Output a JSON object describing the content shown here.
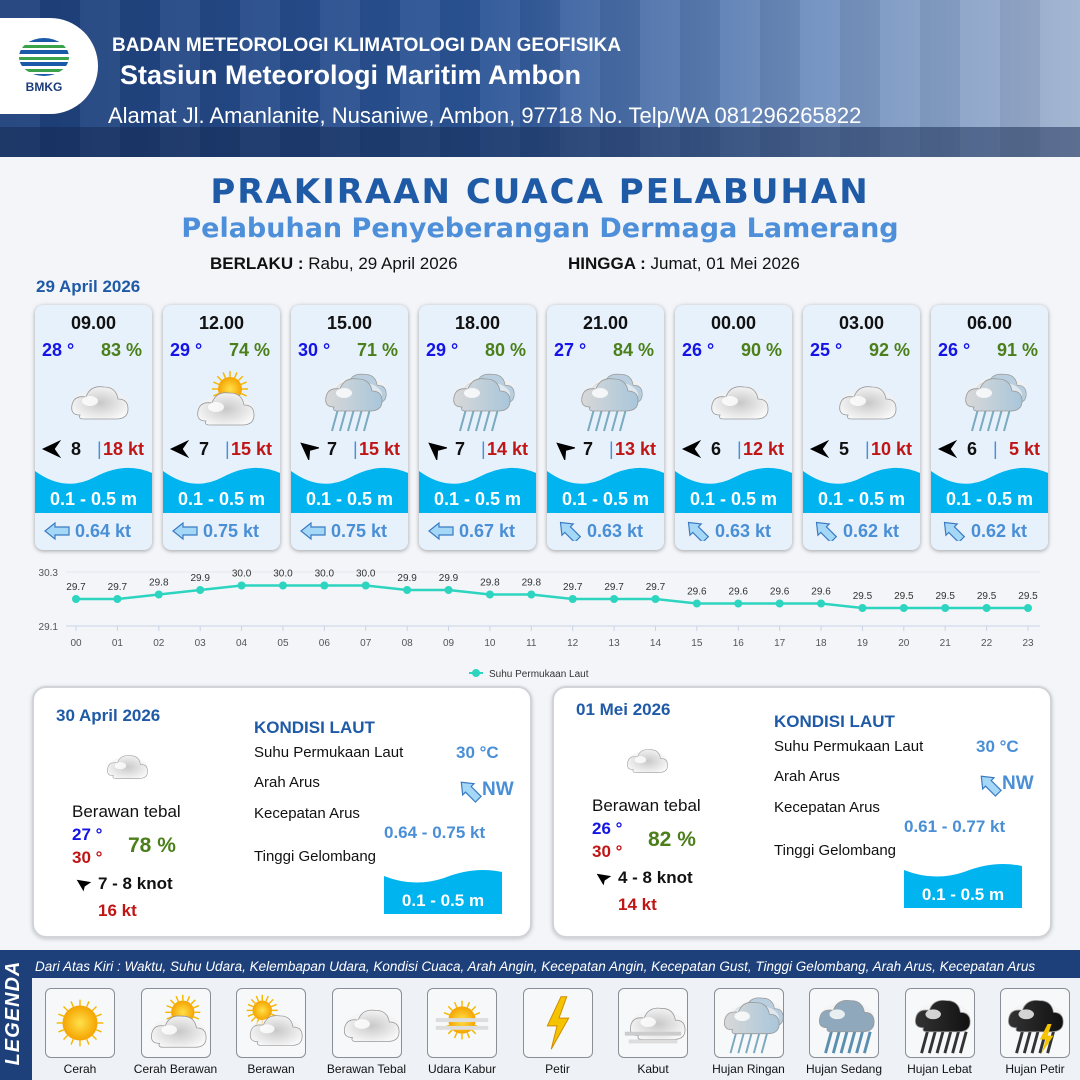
{
  "header": {
    "org": "BADAN METEOROLOGI KLIMATOLOGI DAN GEOFISIKA",
    "station": "Stasiun Meteorologi Maritim Ambon",
    "address": "Alamat Jl. Amanlanite, Nusaniwe, Ambon, 97718   No. Telp/WA  081296265822",
    "logo_text": "BMKG"
  },
  "title": "PRAKIRAAN CUACA PELABUHAN",
  "subtitle": "Pelabuhan Penyeberangan Dermaga Lamerang",
  "validity": {
    "from_label": "BERLAKU :",
    "from": "Rabu, 29 April 2026",
    "to_label": "HINGGA :",
    "to": "Jumat, 01 Mei 2026"
  },
  "day1_date": "29 April 2026",
  "forecasts": [
    {
      "time": "09.00",
      "temp": "28 °",
      "hum": "83 %",
      "weather": "berawan-tebal",
      "wind_dir": "E",
      "wind": "8",
      "gust": "18 kt",
      "wave": "0.1 - 0.5 m",
      "current_dir": "E",
      "current": "0.64 kt"
    },
    {
      "time": "12.00",
      "temp": "29 °",
      "hum": "74 %",
      "weather": "cerah-berawan",
      "wind_dir": "E",
      "wind": "7",
      "gust": "15 kt",
      "wave": "0.1 - 0.5 m",
      "current_dir": "E",
      "current": "0.75 kt"
    },
    {
      "time": "15.00",
      "temp": "30 °",
      "hum": "71 %",
      "weather": "hujan-ringan",
      "wind_dir": "SE",
      "wind": "7",
      "gust": "15 kt",
      "wave": "0.1 - 0.5 m",
      "current_dir": "E",
      "current": "0.75 kt"
    },
    {
      "time": "18.00",
      "temp": "29 °",
      "hum": "80 %",
      "weather": "hujan-ringan",
      "wind_dir": "SE",
      "wind": "7",
      "gust": "14 kt",
      "wave": "0.1 - 0.5 m",
      "current_dir": "E",
      "current": "0.67 kt"
    },
    {
      "time": "21.00",
      "temp": "27 °",
      "hum": "84 %",
      "weather": "hujan-ringan",
      "wind_dir": "SE",
      "wind": "7",
      "gust": "13 kt",
      "wave": "0.1 - 0.5 m",
      "current_dir": "SE",
      "current": "0.63 kt"
    },
    {
      "time": "00.00",
      "temp": "26 °",
      "hum": "90 %",
      "weather": "berawan-tebal",
      "wind_dir": "E",
      "wind": "6",
      "gust": "12 kt",
      "wave": "0.1 - 0.5 m",
      "current_dir": "SE",
      "current": "0.63 kt"
    },
    {
      "time": "03.00",
      "temp": "25 °",
      "hum": "92 %",
      "weather": "berawan-tebal",
      "wind_dir": "E",
      "wind": "5",
      "gust": "10 kt",
      "wave": "0.1 - 0.5 m",
      "current_dir": "SE",
      "current": "0.62 kt"
    },
    {
      "time": "06.00",
      "temp": "26 °",
      "hum": "91 %",
      "weather": "hujan-ringan",
      "wind_dir": "E",
      "wind": "6",
      "gust": "5 kt",
      "wave": "0.1 - 0.5 m",
      "current_dir": "SE",
      "current": "0.62 kt"
    }
  ],
  "chart_data": {
    "type": "line",
    "x": [
      "00",
      "01",
      "02",
      "03",
      "04",
      "05",
      "06",
      "07",
      "08",
      "09",
      "10",
      "11",
      "12",
      "13",
      "14",
      "15",
      "16",
      "17",
      "18",
      "19",
      "20",
      "21",
      "22",
      "23"
    ],
    "series": [
      {
        "name": "Suhu Permukaan Laut",
        "values": [
          29.7,
          29.7,
          29.8,
          29.9,
          30.0,
          30.0,
          30.0,
          30.0,
          29.9,
          29.9,
          29.8,
          29.8,
          29.7,
          29.7,
          29.7,
          29.6,
          29.6,
          29.6,
          29.6,
          29.5,
          29.5,
          29.5,
          29.5,
          29.5
        ],
        "color": "#2dd4bf"
      }
    ],
    "ylim": [
      29.1,
      30.3
    ],
    "yticks": [
      "29.1",
      "30.3"
    ],
    "legend": "bottom",
    "grid": true
  },
  "days": [
    {
      "date": "30 April 2026",
      "condition": "Berawan tebal",
      "tmin": "27 °",
      "tmax": "30 °",
      "hum": "78 %",
      "wind_range": "7  - 8 knot",
      "gust": "16 kt",
      "kondisi_title": "KONDISI LAUT",
      "sst_label": "Suhu Permukaan Laut",
      "sst": "30 °C",
      "dir_label": "Arah Arus",
      "dir": "NW",
      "speed_label": "Kecepatan Arus",
      "speed": "0.64 - 0.75 kt",
      "wave_label": "Tinggi Gelombang",
      "wave": "0.1 - 0.5 m"
    },
    {
      "date": "01 Mei 2026",
      "condition": "Berawan tebal",
      "tmin": "26 °",
      "tmax": "30 °",
      "hum": "82 %",
      "wind_range": "4  - 8 knot",
      "gust": "14 kt",
      "kondisi_title": "KONDISI LAUT",
      "sst_label": "Suhu Permukaan Laut",
      "sst": "30 °C",
      "dir_label": "Arah Arus",
      "dir": "NW",
      "speed_label": "Kecepatan Arus",
      "speed": "0.61 - 0.77 kt",
      "wave_label": "Tinggi Gelombang",
      "wave": "0.1 - 0.5 m"
    }
  ],
  "legend": {
    "title": "LEGENDA",
    "description": "Dari Atas Kiri : Waktu, Suhu Udara, Kelembapan Udara, Kondisi Cuaca, Arah Angin, Kecepatan Angin, Kecepatan Gust, Tinggi Gelombang, Arah Arus, Kecepatan Arus",
    "items": [
      {
        "label": "Cerah",
        "icon": "sun"
      },
      {
        "label": "Cerah Berawan",
        "icon": "sun-cloud"
      },
      {
        "label": "Berawan",
        "icon": "cloud-sun"
      },
      {
        "label": "Berawan Tebal",
        "icon": "cloud"
      },
      {
        "label": "Udara Kabur",
        "icon": "haze"
      },
      {
        "label": "Petir",
        "icon": "lightning"
      },
      {
        "label": "Kabut",
        "icon": "fog"
      },
      {
        "label": "Hujan Ringan",
        "icon": "rain-light"
      },
      {
        "label": "Hujan Sedang",
        "icon": "rain-moderate"
      },
      {
        "label": "Hujan Lebat",
        "icon": "rain-heavy"
      },
      {
        "label": "Hujan Petir",
        "icon": "thunderstorm"
      }
    ]
  },
  "colors": {
    "brand": "#1f5aa6",
    "wave": "#00b4f0",
    "temp": "#1414e6",
    "humidity": "#4a7f1a",
    "gust": "#c01515"
  }
}
